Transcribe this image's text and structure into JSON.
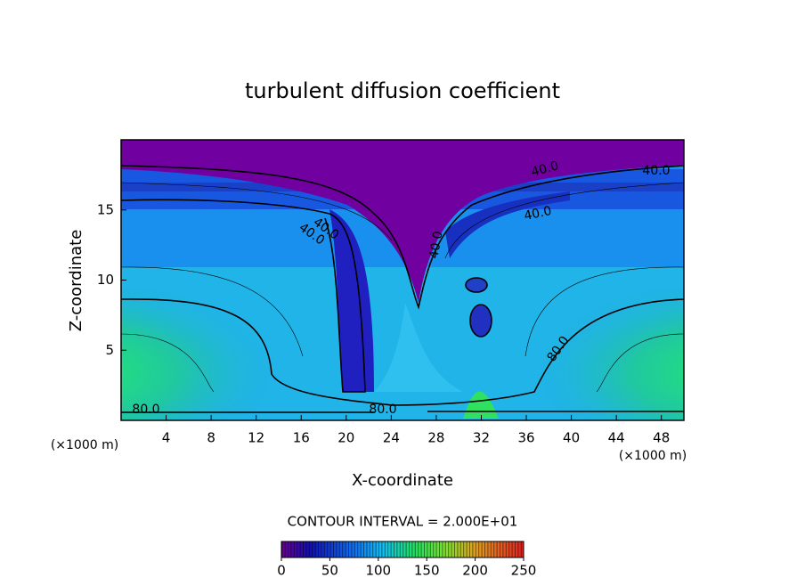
{
  "chart_data": {
    "type": "contour",
    "title": "turbulent diffusion coefficient",
    "x_label": "X-coordinate",
    "y_label": "Z-coordinate",
    "x_unit": "(×1000 m)",
    "y_unit": "(×1000 m)",
    "xlim": [
      0,
      50
    ],
    "xticks": [
      4,
      8,
      12,
      16,
      20,
      24,
      28,
      32,
      36,
      40,
      44,
      48
    ],
    "ylim": [
      0,
      20
    ],
    "yticks": [
      5,
      10,
      15
    ],
    "contour_labels": [
      {
        "value": 40,
        "label": "40.0"
      },
      {
        "value": 40,
        "label": "40.0"
      },
      {
        "value": 40,
        "label": "40.0"
      },
      {
        "value": 40,
        "label": "40.0"
      },
      {
        "value": 40,
        "label": "40.0"
      },
      {
        "value": 40,
        "label": "40.0"
      },
      {
        "value": 80,
        "label": "80.0"
      },
      {
        "value": 80,
        "label": "80.0"
      },
      {
        "value": 80,
        "label": "80.0"
      }
    ],
    "contour_interval_text": "CONTOUR INTERVAL = 2.000E+01",
    "colorbar": {
      "clim": [
        0,
        250
      ],
      "ticks": [
        0,
        50,
        100,
        150,
        200,
        250
      ]
    }
  }
}
